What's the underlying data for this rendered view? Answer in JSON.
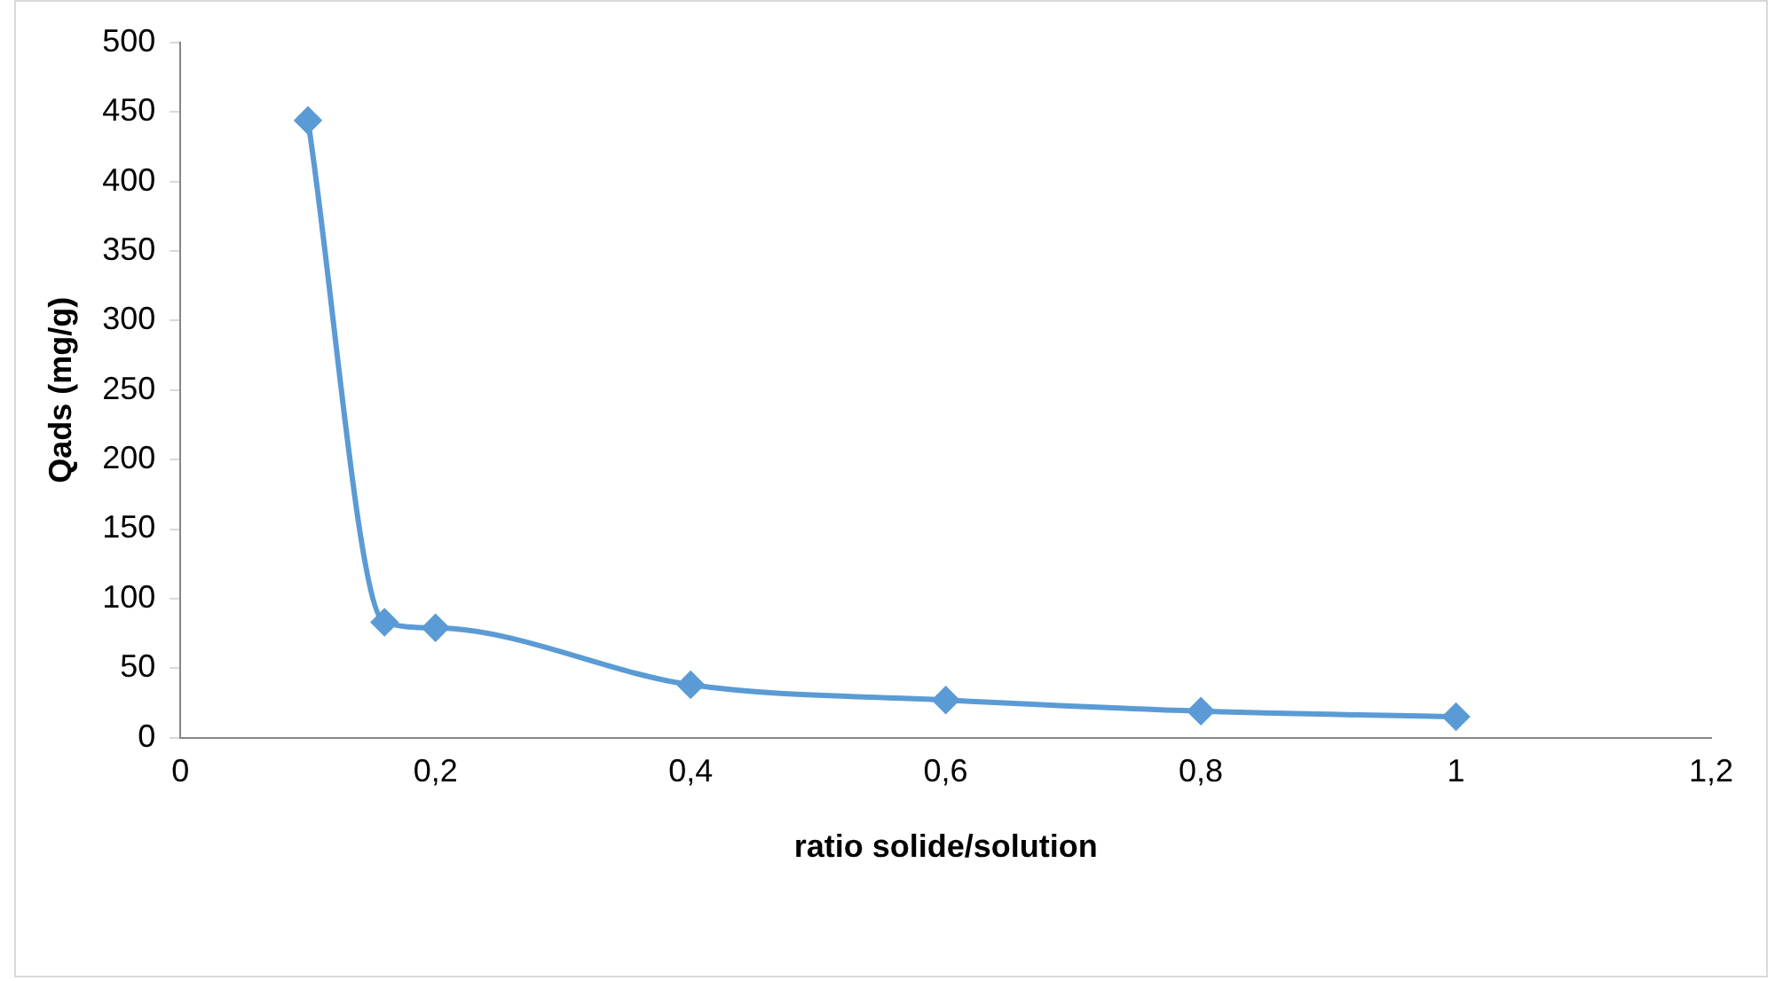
{
  "chart_data": {
    "type": "line",
    "xlabel": "ratio solide/solution",
    "ylabel": "Qads (mg/g)",
    "x": [
      0.1,
      0.16,
      0.2,
      0.4,
      0.6,
      0.8,
      1
    ],
    "series": [
      {
        "color": "#5b9bd5",
        "values": [
          444,
          83,
          79,
          38,
          27,
          19,
          15
        ]
      }
    ],
    "xlim": [
      0,
      1.2
    ],
    "xticks": [
      0,
      {
        "value": 0.2,
        "label": "0,2"
      },
      {
        "value": 0.4,
        "label": "0,4"
      },
      {
        "value": 0.6,
        "label": "0,6"
      },
      {
        "value": 0.8,
        "label": "0,8"
      },
      1,
      {
        "value": 1.2,
        "label": "1,2"
      }
    ],
    "ylim": [
      0,
      500
    ],
    "yticks": [
      0,
      50,
      100,
      150,
      200,
      250,
      300,
      350,
      400,
      450,
      500
    ],
    "grid": false,
    "legend": false,
    "marker": "diamond",
    "line_style": "solid"
  }
}
